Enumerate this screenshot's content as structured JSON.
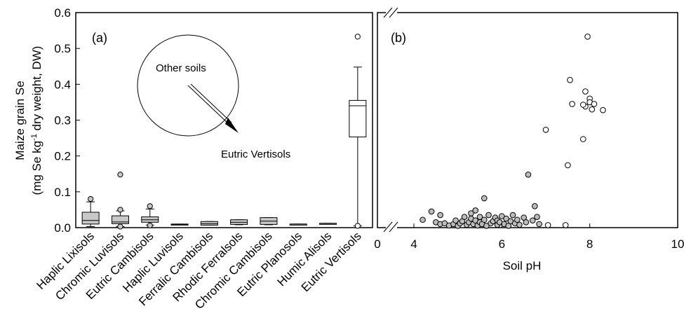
{
  "chart_data": [
    {
      "panel": "(a)",
      "type": "box",
      "ylabel": "Maize grain Se",
      "ylabel_units": "(mg Se kg⁻¹ dry weight, DW)",
      "ylim": [
        0,
        0.6
      ],
      "yticks": [
        "0.0",
        "0.1",
        "0.2",
        "0.3",
        "0.4",
        "0.5",
        "0.6"
      ],
      "ytick_values": [
        0,
        0.1,
        0.2,
        0.3,
        0.4,
        0.5,
        0.6
      ],
      "categories": [
        "Haplic Lixisols",
        "Chromic Luvisols",
        "Eutric Cambisols",
        "Haplic Luvisols",
        "Ferralic Cambisols",
        "Rhodic Ferralsols",
        "Chromic Cambisols",
        "Eutric Planosols",
        "Humic Alisols",
        "Eutric Vertisols"
      ],
      "boxes": [
        {
          "whisker_low": 0.003,
          "q1": 0.01,
          "median": 0.02,
          "q3": 0.043,
          "whisker_high": 0.072,
          "outliers": [
            0.08
          ],
          "fill": "gray"
        },
        {
          "whisker_low": 0.003,
          "q1": 0.011,
          "median": 0.016,
          "q3": 0.033,
          "whisker_high": 0.047,
          "outliers": [
            0.148,
            0.05,
            0.003
          ],
          "fill": "gray"
        },
        {
          "whisker_low": 0.007,
          "q1": 0.015,
          "median": 0.022,
          "q3": 0.03,
          "whisker_high": 0.052,
          "outliers": [
            0.06,
            0.006
          ],
          "fill": "gray"
        },
        {
          "whisker_low": 0.008,
          "q1": 0.009,
          "median": 0.009,
          "q3": 0.01,
          "whisker_high": 0.01,
          "outliers": [],
          "fill": "gray"
        },
        {
          "whisker_low": 0.007,
          "q1": 0.007,
          "median": 0.011,
          "q3": 0.017,
          "whisker_high": 0.017,
          "outliers": [],
          "fill": "gray"
        },
        {
          "whisker_low": 0.008,
          "q1": 0.009,
          "median": 0.015,
          "q3": 0.022,
          "whisker_high": 0.022,
          "outliers": [],
          "fill": "gray"
        },
        {
          "whisker_low": 0.008,
          "q1": 0.009,
          "median": 0.018,
          "q3": 0.028,
          "whisker_high": 0.028,
          "outliers": [],
          "fill": "gray"
        },
        {
          "whisker_low": 0.009,
          "q1": 0.009,
          "median": 0.01,
          "q3": 0.01,
          "whisker_high": 0.01,
          "outliers": [],
          "fill": "gray"
        },
        {
          "whisker_low": 0.011,
          "q1": 0.011,
          "median": 0.012,
          "q3": 0.012,
          "whisker_high": 0.012,
          "outliers": [],
          "fill": "gray"
        },
        {
          "whisker_low": 0.005,
          "q1": 0.253,
          "median": 0.34,
          "q3": 0.355,
          "whisker_high": 0.448,
          "outliers": [
            0.533,
            0.005
          ],
          "fill": "white"
        }
      ],
      "annotations": [
        "Other soils",
        "Eutric Vertisols"
      ]
    },
    {
      "panel": "(b)",
      "type": "scatter",
      "xlabel": "Soil pH",
      "xlim": [
        0,
        10
      ],
      "xticks": [
        "0",
        "4",
        "6",
        "8",
        "10"
      ],
      "xtick_values": [
        0,
        4,
        6,
        8,
        10
      ],
      "axis_break": true,
      "ylim": [
        0,
        0.6
      ],
      "series": [
        {
          "fill": "gray",
          "points": [
            [
              4.2,
              0.022
            ],
            [
              4.4,
              0.045
            ],
            [
              4.5,
              0.015
            ],
            [
              4.6,
              0.035
            ],
            [
              4.6,
              0.01
            ],
            [
              4.7,
              0.012
            ],
            [
              4.8,
              0.006
            ],
            [
              4.9,
              0.01
            ],
            [
              4.95,
              0.02
            ],
            [
              5.0,
              0.005
            ],
            [
              5.05,
              0.012
            ],
            [
              5.1,
              0.018
            ],
            [
              5.15,
              0.03
            ],
            [
              5.2,
              0.008
            ],
            [
              5.25,
              0.015
            ],
            [
              5.3,
              0.025
            ],
            [
              5.3,
              0.04
            ],
            [
              5.35,
              0.01
            ],
            [
              5.4,
              0.048
            ],
            [
              5.4,
              0.02
            ],
            [
              5.45,
              0.006
            ],
            [
              5.5,
              0.03
            ],
            [
              5.5,
              0.015
            ],
            [
              5.55,
              0.01
            ],
            [
              5.6,
              0.082
            ],
            [
              5.6,
              0.022
            ],
            [
              5.65,
              0.005
            ],
            [
              5.7,
              0.035
            ],
            [
              5.75,
              0.012
            ],
            [
              5.8,
              0.018
            ],
            [
              5.85,
              0.028
            ],
            [
              5.9,
              0.008
            ],
            [
              5.9,
              0.02
            ],
            [
              5.95,
              0.015
            ],
            [
              6.0,
              0.032
            ],
            [
              6.05,
              0.01
            ],
            [
              6.1,
              0.025
            ],
            [
              6.15,
              0.005
            ],
            [
              6.2,
              0.018
            ],
            [
              6.25,
              0.035
            ],
            [
              6.3,
              0.012
            ],
            [
              6.35,
              0.022
            ],
            [
              6.4,
              0.008
            ],
            [
              6.5,
              0.028
            ],
            [
              6.55,
              0.015
            ],
            [
              6.6,
              0.148
            ],
            [
              6.7,
              0.02
            ],
            [
              6.75,
              0.06
            ],
            [
              6.8,
              0.03
            ],
            [
              6.85,
              0.01
            ]
          ]
        },
        {
          "fill": "white",
          "points": [
            [
              7.0,
              0.273
            ],
            [
              7.05,
              0.007
            ],
            [
              7.45,
              0.007
            ],
            [
              7.5,
              0.174
            ],
            [
              7.55,
              0.412
            ],
            [
              7.6,
              0.345
            ],
            [
              7.85,
              0.247
            ],
            [
              7.9,
              0.38
            ],
            [
              7.9,
              0.338
            ],
            [
              7.95,
              0.533
            ],
            [
              8.0,
              0.36
            ],
            [
              8.0,
              0.35
            ],
            [
              8.05,
              0.33
            ],
            [
              8.1,
              0.345
            ],
            [
              8.3,
              0.328
            ],
            [
              7.85,
              0.343
            ]
          ]
        }
      ]
    }
  ]
}
